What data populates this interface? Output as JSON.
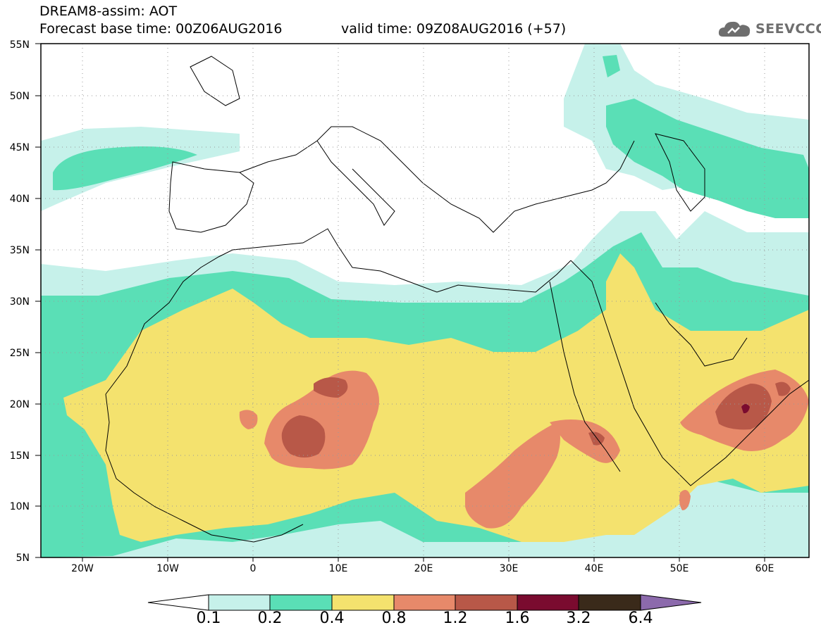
{
  "header": {
    "line1": "DREAM8-assim: AOT",
    "line2": "Forecast base time: 00Z06AUG2016",
    "valid": "valid time: 09Z08AUG2016 (+57)"
  },
  "logo": {
    "text": "SEEVCCC",
    "icon": "cloud-icon"
  },
  "map": {
    "lat_labels": [
      "55N",
      "50N",
      "45N",
      "40N",
      "35N",
      "30N",
      "25N",
      "20N",
      "15N",
      "10N",
      "5N"
    ],
    "lon_labels": [
      "20W",
      "10W",
      "0",
      "10E",
      "20E",
      "30E",
      "40E",
      "50E",
      "60E"
    ]
  },
  "colorbar": {
    "labels": [
      "0.1",
      "0.2",
      "0.4",
      "0.8",
      "1.2",
      "1.6",
      "3.2",
      "6.4"
    ],
    "colors": [
      "#ffffff",
      "#c6f1ea",
      "#5adfb6",
      "#f4e26e",
      "#e7896a",
      "#b85848",
      "#7a0b2f",
      "#3a2a1a",
      "#8c6aac"
    ]
  }
}
